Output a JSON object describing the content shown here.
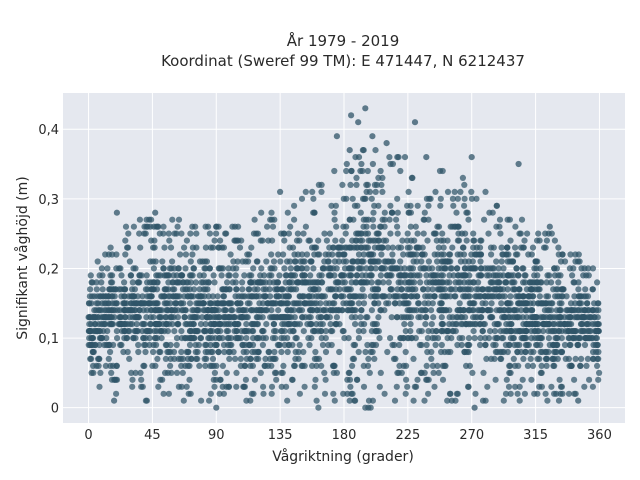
{
  "chart_data": {
    "type": "scatter",
    "title_line1": "År 1979 - 2019",
    "title_line2": "Koordinat (Sweref 99 TM): E 471447, N 6212437",
    "xlabel": "Vågriktning (grader)",
    "ylabel": "Signifikant våghöjd (m)",
    "xlim": [
      -18,
      378
    ],
    "ylim": [
      -0.022,
      0.452
    ],
    "xticks": [
      0,
      45,
      90,
      135,
      180,
      225,
      270,
      315,
      360
    ],
    "xtick_labels": [
      "0",
      "45",
      "90",
      "135",
      "180",
      "225",
      "270",
      "315",
      "360"
    ],
    "yticks": [
      0,
      0.1,
      0.2,
      0.3,
      0.4
    ],
    "ytick_labels": [
      "0",
      "0,1",
      "0,2",
      "0,3",
      "0,4"
    ],
    "grid": true,
    "colors": {
      "marker": "#2f5468",
      "plot_bg": "#e5e8ef",
      "grid": "#ffffff"
    },
    "envelope": [
      {
        "x": 0,
        "lo": 0.04,
        "hi": 0.19
      },
      {
        "x": 20,
        "lo": 0.02,
        "hi": 0.26
      },
      {
        "x": 45,
        "lo": 0.01,
        "hi": 0.28
      },
      {
        "x": 90,
        "lo": 0.01,
        "hi": 0.26
      },
      {
        "x": 135,
        "lo": 0.01,
        "hi": 0.29
      },
      {
        "x": 160,
        "lo": 0.0,
        "hi": 0.32
      },
      {
        "x": 180,
        "lo": 0.0,
        "hi": 0.36
      },
      {
        "x": 200,
        "lo": 0.0,
        "hi": 0.38
      },
      {
        "x": 225,
        "lo": 0.01,
        "hi": 0.36
      },
      {
        "x": 270,
        "lo": 0.0,
        "hi": 0.33
      },
      {
        "x": 315,
        "lo": 0.01,
        "hi": 0.26
      },
      {
        "x": 340,
        "lo": 0.01,
        "hi": 0.23
      },
      {
        "x": 360,
        "lo": 0.03,
        "hi": 0.2
      }
    ],
    "outliers": [
      {
        "x": 185,
        "y": 0.42
      },
      {
        "x": 195,
        "y": 0.43
      },
      {
        "x": 190,
        "y": 0.41
      },
      {
        "x": 230,
        "y": 0.41
      },
      {
        "x": 175,
        "y": 0.39
      },
      {
        "x": 200,
        "y": 0.39
      },
      {
        "x": 210,
        "y": 0.38
      },
      {
        "x": 184,
        "y": 0.37
      },
      {
        "x": 238,
        "y": 0.36
      },
      {
        "x": 270,
        "y": 0.36
      },
      {
        "x": 303,
        "y": 0.35
      },
      {
        "x": 135,
        "y": 0.31
      },
      {
        "x": 20,
        "y": 0.28
      },
      {
        "x": 47,
        "y": 0.28
      },
      {
        "x": 90,
        "y": 0.26
      },
      {
        "x": 325,
        "y": 0.26
      },
      {
        "x": 90,
        "y": 0.0
      },
      {
        "x": 272,
        "y": 0.0
      },
      {
        "x": 18,
        "y": 0.01
      },
      {
        "x": 345,
        "y": 0.01
      }
    ]
  }
}
